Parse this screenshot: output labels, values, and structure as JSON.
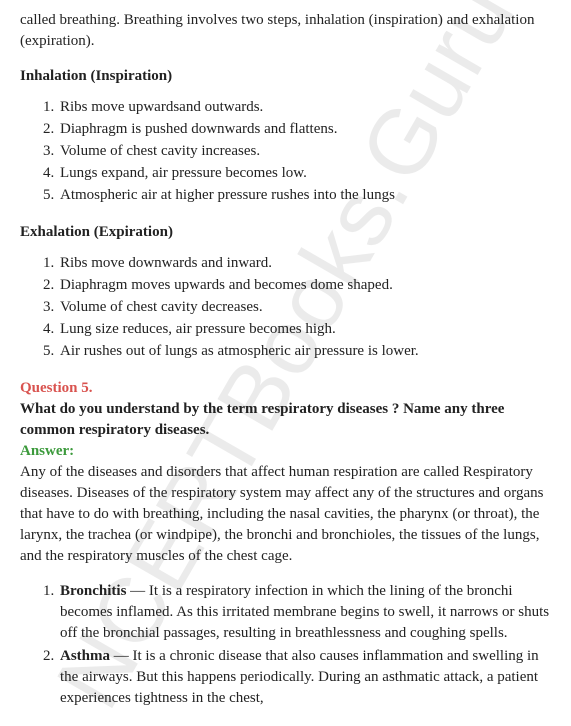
{
  "watermark": "NCERTBooks.Guru",
  "intro": "called breathing. Breathing involves two steps, inhalation (inspiration) and exhalation (expiration).",
  "inhalation": {
    "heading": "Inhalation (Inspiration)",
    "items": [
      "Ribs move upwardsand outwards.",
      "Diaphragm is pushed downwards and flattens.",
      "Volume of chest cavity increases.",
      "Lungs expand, air pressure becomes low.",
      "Atmospheric air at higher pressure rushes into the lungs"
    ]
  },
  "exhalation": {
    "heading": "Exhalation (Expiration)",
    "items": [
      "Ribs move downwards and inward.",
      "Diaphragm moves upwards and becomes dome shaped.",
      "Volume of chest cavity decreases.",
      "Lung size reduces, air pressure becomes high.",
      "Air rushes out of lungs as atmospheric air pressure is lower."
    ]
  },
  "question": {
    "label": "Question 5.",
    "text": "What do you understand by the term respiratory diseases ? Name any three common respiratory diseases.",
    "answer_label": "Answer:",
    "answer_text": "Any of the diseases and disorders that affect human respiration are called Respiratory diseases. Diseases of the respiratory system may affect any of the structures and organs that have to do with breathing, including the nasal cavities, the pharynx (or throat), the larynx, the trachea (or windpipe), the bronchi and bronchioles, the tissues of the lungs, and the respiratory muscles of the chest cage."
  },
  "diseases": [
    {
      "name": "Bronchitis",
      "desc": " — It is a respiratory infection in which the lining of the bronchi becomes inflamed. As this irritated membrane begins to swell, it narrows or shuts off the bronchial passages, resulting in breathlessness and coughing spells."
    },
    {
      "name": "Asthma",
      "desc": " — It is a chronic disease that also causes inflammation and swelling in the airways. But this happens periodically. During an asthmatic attack, a patient experiences tightness in the chest,"
    }
  ],
  "colors": {
    "question_label": "#d9534f",
    "answer_label": "#3c9a3c",
    "text": "#222222",
    "watermark": "rgba(0,0,0,0.08)"
  }
}
